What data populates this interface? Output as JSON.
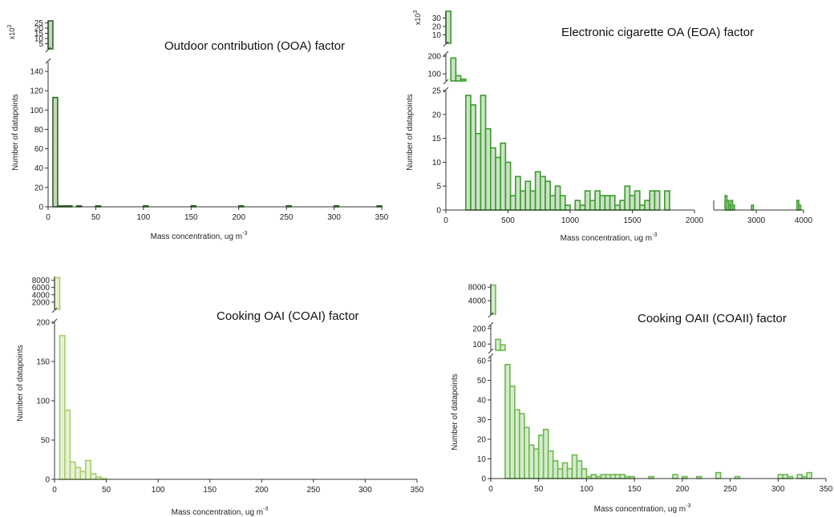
{
  "chart_data": [
    {
      "type": "bar",
      "title": "Outdoor contribution (OOA) factor",
      "xlabel": "Mass concentration, ug m",
      "xlabel_sup": "-3",
      "ylabel": "Number of datapoints",
      "color": "#2e6b21",
      "bin_width": 5,
      "xlim": [
        0,
        350
      ],
      "x_ticks": [
        0,
        50,
        100,
        150,
        200,
        250,
        300,
        350
      ],
      "break_factor_label": "x10",
      "break_factor_sup": "3",
      "upper_ylim": [
        0,
        27
      ],
      "upper_ticks": [
        5,
        10,
        15,
        20,
        25
      ],
      "lower_ylim": [
        0,
        150
      ],
      "lower_ticks": [
        0,
        20,
        40,
        60,
        80,
        100,
        120,
        140
      ],
      "bins": [
        [
          0,
          26000
        ],
        [
          5,
          113
        ],
        [
          10,
          1
        ],
        [
          15,
          1
        ],
        [
          20,
          1
        ],
        [
          30,
          1
        ],
        [
          50,
          1
        ],
        [
          100,
          1
        ],
        [
          150,
          1
        ],
        [
          200,
          1
        ],
        [
          250,
          1
        ],
        [
          300,
          1
        ],
        [
          345,
          1
        ]
      ]
    },
    {
      "type": "bar",
      "title": "Electronic cigarette OA (EOA) factor",
      "xlabel": "Mass concentration, ug m",
      "xlabel_sup": "-3",
      "ylabel": "Number of datapoints",
      "color": "#3d9a2e",
      "bin_width": 40,
      "xlim": [
        0,
        2000
      ],
      "x_ticks": [
        0,
        500,
        1000,
        1500,
        2000
      ],
      "x_ticks_right": [
        3000,
        4000
      ],
      "right_xlim": [
        2100,
        4000
      ],
      "break_factor_label": "x10",
      "break_factor_sup": "3",
      "top_ylim": [
        0,
        38
      ],
      "top_ticks": [
        10,
        20,
        30
      ],
      "mid_ylim": [
        60,
        210
      ],
      "mid_ticks": [
        100,
        200
      ],
      "low_ylim": [
        0,
        25
      ],
      "low_ticks": [
        0,
        5,
        10,
        15,
        20,
        25
      ],
      "bins": [
        [
          0,
          35000
        ],
        [
          40,
          190
        ],
        [
          80,
          90
        ],
        [
          120,
          70
        ],
        [
          160,
          24
        ],
        [
          200,
          22
        ],
        [
          240,
          16
        ],
        [
          280,
          24
        ],
        [
          320,
          17
        ],
        [
          360,
          13
        ],
        [
          400,
          11
        ],
        [
          440,
          14
        ],
        [
          480,
          10
        ],
        [
          520,
          3
        ],
        [
          560,
          7
        ],
        [
          600,
          4
        ],
        [
          640,
          6
        ],
        [
          680,
          4
        ],
        [
          720,
          8
        ],
        [
          760,
          7
        ],
        [
          800,
          6
        ],
        [
          840,
          3
        ],
        [
          880,
          5
        ],
        [
          920,
          3
        ],
        [
          960,
          1
        ],
        [
          1000,
          0
        ],
        [
          1040,
          2
        ],
        [
          1080,
          1
        ],
        [
          1120,
          4
        ],
        [
          1160,
          2
        ],
        [
          1200,
          4
        ],
        [
          1240,
          3
        ],
        [
          1280,
          3
        ],
        [
          1320,
          3
        ],
        [
          1360,
          1
        ],
        [
          1400,
          2
        ],
        [
          1440,
          5
        ],
        [
          1480,
          3
        ],
        [
          1520,
          4
        ],
        [
          1560,
          1
        ],
        [
          1600,
          2
        ],
        [
          1640,
          4
        ],
        [
          1680,
          4
        ],
        [
          1720,
          0
        ],
        [
          1760,
          4
        ]
      ],
      "bins_right": [
        [
          2340,
          3
        ],
        [
          2380,
          2
        ],
        [
          2420,
          1
        ],
        [
          2460,
          2
        ],
        [
          2500,
          1
        ],
        [
          2900,
          1
        ],
        [
          3860,
          2
        ],
        [
          3900,
          1
        ]
      ]
    },
    {
      "type": "bar",
      "title": "Cooking OAI (COAI) factor",
      "xlabel": "Mass concentration, ug m",
      "xlabel_sup": "-3",
      "ylabel": "Number of datapoints",
      "color": "#a9cf6b",
      "bin_width": 5,
      "xlim": [
        0,
        350
      ],
      "x_ticks": [
        0,
        50,
        100,
        150,
        200,
        250,
        300,
        350
      ],
      "upper_ylim": [
        0,
        9000
      ],
      "upper_ticks": [
        2000,
        4000,
        6000,
        8000
      ],
      "lower_ylim": [
        0,
        200
      ],
      "lower_ticks": [
        0,
        50,
        100,
        150,
        200
      ],
      "bins": [
        [
          0,
          8700
        ],
        [
          5,
          183
        ],
        [
          10,
          88
        ],
        [
          15,
          22
        ],
        [
          20,
          15
        ],
        [
          25,
          10
        ],
        [
          30,
          24
        ],
        [
          35,
          7
        ],
        [
          40,
          3
        ],
        [
          45,
          1
        ]
      ]
    },
    {
      "type": "bar",
      "title": "Cooking OAII (COAII) factor",
      "xlabel": "Mass concentration, ug m",
      "xlabel_sup": "-3",
      "ylabel": "Number of datapoints",
      "color": "#6db84f",
      "bin_width": 5,
      "xlim": [
        0,
        350
      ],
      "x_ticks": [
        0,
        50,
        100,
        150,
        200,
        250,
        300,
        350
      ],
      "top_ylim": [
        0,
        9000
      ],
      "top_ticks": [
        4000,
        8000
      ],
      "mid_ylim": [
        60,
        220
      ],
      "mid_ticks": [
        100,
        200
      ],
      "low_ylim": [
        0,
        62
      ],
      "low_ticks": [
        0,
        10,
        20,
        30,
        40,
        50,
        60
      ],
      "bins": [
        [
          0,
          8600
        ],
        [
          5,
          130
        ],
        [
          10,
          95
        ],
        [
          15,
          58
        ],
        [
          20,
          47
        ],
        [
          25,
          35
        ],
        [
          30,
          33
        ],
        [
          35,
          26
        ],
        [
          40,
          17
        ],
        [
          45,
          15
        ],
        [
          50,
          22
        ],
        [
          55,
          25
        ],
        [
          60,
          14
        ],
        [
          65,
          9
        ],
        [
          70,
          5
        ],
        [
          75,
          8
        ],
        [
          80,
          5
        ],
        [
          85,
          12
        ],
        [
          90,
          9
        ],
        [
          95,
          5
        ],
        [
          100,
          1
        ],
        [
          105,
          2
        ],
        [
          110,
          1
        ],
        [
          115,
          2
        ],
        [
          120,
          2
        ],
        [
          125,
          2
        ],
        [
          130,
          2
        ],
        [
          135,
          2
        ],
        [
          140,
          1
        ],
        [
          145,
          1
        ],
        [
          165,
          1
        ],
        [
          190,
          2
        ],
        [
          200,
          1
        ],
        [
          215,
          1
        ],
        [
          235,
          3
        ],
        [
          255,
          1
        ],
        [
          300,
          2
        ],
        [
          305,
          2
        ],
        [
          310,
          1
        ],
        [
          320,
          2
        ],
        [
          325,
          1
        ],
        [
          330,
          3
        ]
      ]
    }
  ]
}
